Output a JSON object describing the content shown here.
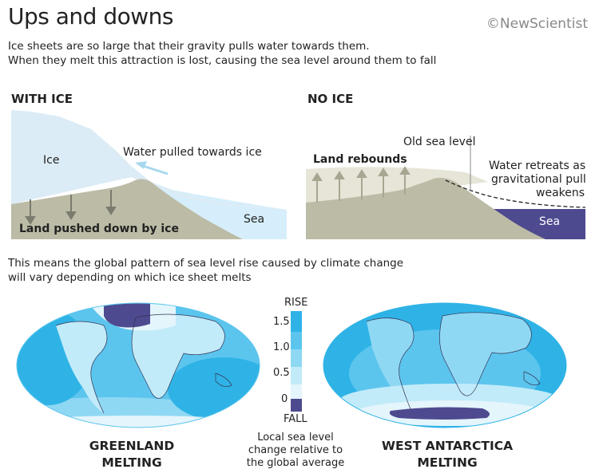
{
  "header": {
    "title": "Ups and downs",
    "brand": "©NewScientist",
    "subtitle_line1": "Ice sheets are so large that their gravity pulls water towards them.",
    "subtitle_line2": "When they melt this attraction is lost, causing the sea level around them to fall"
  },
  "with_ice": {
    "heading": "WITH ICE",
    "ice_label": "Ice",
    "water_label": "Water pulled towards ice",
    "sea_label": "Sea",
    "land_label": "Land pushed down by ice"
  },
  "no_ice": {
    "heading": "NO ICE",
    "old_sea_level_label": "Old sea level",
    "rebound_label": "Land rebounds",
    "retreat_line1": "Water retreats as",
    "retreat_line2": "gravitational pull",
    "retreat_line3": "weakens",
    "sea_label": "Sea"
  },
  "middle_text": {
    "line1": "This means the global pattern of sea level rise caused by climate change",
    "line2": "will vary depending on which ice sheet melts"
  },
  "legend": {
    "top_label": "RISE",
    "bottom_label": "FALL",
    "ticks": [
      "1.5",
      "1.0",
      "0.5",
      "0"
    ],
    "caption_line1": "Local sea level",
    "caption_line2": "change relative to",
    "caption_line3": "the global average",
    "colors": [
      "#2fb3e6",
      "#5cc5ee",
      "#8fd8f4",
      "#c2ebf9",
      "#e4f5fc",
      "#4e4a8f"
    ]
  },
  "maps": {
    "greenland_line1": "GREENLAND",
    "greenland_line2": "MELTING",
    "antarctica_line1": "WEST ANTARCTICA",
    "antarctica_line2": "MELTING"
  },
  "colors": {
    "ice": "#dcecf6",
    "sea": "#d6eefb",
    "land": "#bcbba6",
    "fall": "#4e4a8f"
  }
}
